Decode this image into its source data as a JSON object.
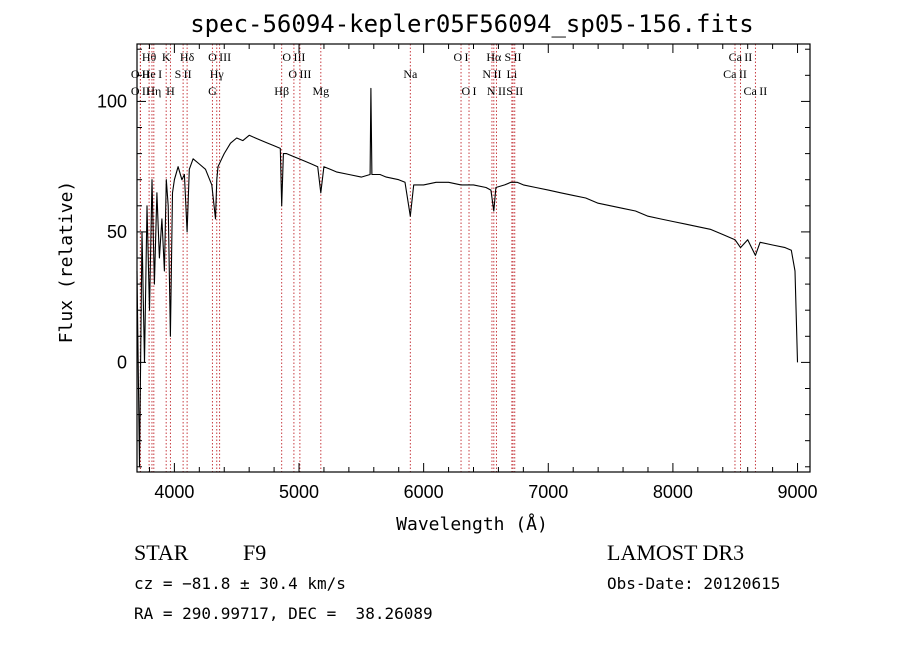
{
  "chart_data": {
    "type": "line",
    "title": "spec-56094-kepler05F56094_sp05-156.fits",
    "xlabel": "Wavelength (Å)",
    "ylabel": "Flux (relative)",
    "xlim": [
      3700,
      9100
    ],
    "ylim": [
      -42,
      122
    ],
    "xticks": [
      4000,
      5000,
      6000,
      7000,
      8000,
      9000
    ],
    "yticks": [
      0,
      50,
      100
    ],
    "series": [
      {
        "name": "spectrum",
        "x": [
          3700,
          3720,
          3740,
          3760,
          3780,
          3800,
          3820,
          3840,
          3860,
          3880,
          3900,
          3920,
          3935,
          3950,
          3968,
          3985,
          4000,
          4030,
          4060,
          4080,
          4102,
          4120,
          4150,
          4200,
          4250,
          4300,
          4330,
          4340,
          4350,
          4380,
          4400,
          4450,
          4500,
          4550,
          4600,
          4650,
          4700,
          4750,
          4800,
          4850,
          4861,
          4875,
          4900,
          4950,
          5000,
          5050,
          5100,
          5150,
          5175,
          5200,
          5250,
          5300,
          5400,
          5500,
          5570,
          5577,
          5585,
          5650,
          5700,
          5800,
          5850,
          5893,
          5920,
          6000,
          6100,
          6200,
          6300,
          6400,
          6500,
          6540,
          6563,
          6580,
          6650,
          6700,
          6750,
          6800,
          6900,
          7000,
          7100,
          7200,
          7300,
          7400,
          7500,
          7600,
          7700,
          7800,
          7900,
          8000,
          8100,
          8200,
          8300,
          8400,
          8498,
          8542,
          8600,
          8662,
          8700,
          8800,
          8900,
          8950,
          8980,
          9000
        ],
        "values": [
          35,
          -40,
          50,
          0,
          60,
          20,
          70,
          30,
          65,
          40,
          55,
          35,
          70,
          60,
          10,
          65,
          70,
          75,
          70,
          72,
          50,
          74,
          78,
          76,
          74,
          68,
          55,
          70,
          75,
          78,
          80,
          84,
          86,
          85,
          87,
          86,
          85,
          84,
          83,
          82,
          60,
          80,
          80,
          79,
          78,
          77,
          76,
          75,
          65,
          75,
          74,
          73,
          72,
          71,
          72,
          105,
          72,
          72,
          71,
          70,
          69,
          56,
          68,
          68,
          69,
          69,
          68,
          68,
          67,
          66,
          58,
          67,
          68,
          69,
          69,
          68,
          67,
          66,
          65,
          64,
          63,
          61,
          60,
          59,
          58,
          56,
          55,
          54,
          53,
          52,
          51,
          49,
          47,
          44,
          47,
          41,
          46,
          45,
          44,
          43,
          35,
          0
        ]
      }
    ],
    "line_markers": [
      {
        "label": "O II",
        "x": 3727,
        "row": 3
      },
      {
        "label": "Hθ",
        "x": 3797,
        "row": 1
      },
      {
        "label": "O II",
        "x": 3727,
        "row": 2
      },
      {
        "label": "He I",
        "x": 3820,
        "row": 2
      },
      {
        "label": "Hη",
        "x": 3835,
        "row": 3
      },
      {
        "label": "K",
        "x": 3934,
        "row": 1
      },
      {
        "label": "S II",
        "x": 4070,
        "row": 2
      },
      {
        "label": "H",
        "x": 3968,
        "row": 3
      },
      {
        "label": "Hδ",
        "x": 4102,
        "row": 1
      },
      {
        "label": "O III",
        "x": 4363,
        "row": 1
      },
      {
        "label": "Hγ",
        "x": 4340,
        "row": 2
      },
      {
        "label": "G",
        "x": 4305,
        "row": 3
      },
      {
        "label": "Hβ",
        "x": 4861,
        "row": 3
      },
      {
        "label": "O III",
        "x": 4959,
        "row": 1
      },
      {
        "label": "O III",
        "x": 5007,
        "row": 2
      },
      {
        "label": "Mg",
        "x": 5175,
        "row": 3
      },
      {
        "label": "Na",
        "x": 5893,
        "row": 2
      },
      {
        "label": "O I",
        "x": 6300,
        "row": 1
      },
      {
        "label": "O I",
        "x": 6364,
        "row": 3
      },
      {
        "label": "Hα",
        "x": 6563,
        "row": 1
      },
      {
        "label": "N II",
        "x": 6548,
        "row": 2
      },
      {
        "label": "N II",
        "x": 6584,
        "row": 3
      },
      {
        "label": "S II",
        "x": 6717,
        "row": 1
      },
      {
        "label": "Li",
        "x": 6708,
        "row": 2
      },
      {
        "label": "S II",
        "x": 6731,
        "row": 3
      },
      {
        "label": "Ca II",
        "x": 8542,
        "row": 1
      },
      {
        "label": "Ca II",
        "x": 8498,
        "row": 2
      },
      {
        "label": "Ca II",
        "x": 8662,
        "row": 3
      }
    ]
  },
  "info": {
    "object_type": "STAR",
    "subclass": "F9",
    "survey": "LAMOST DR3",
    "cz": "cz = −81.8 ± 30.4 km/s",
    "obs_date": "Obs-Date: 20120615",
    "coords": "RA = 290.99717, DEC =  38.26089"
  },
  "colors": {
    "spectrum": "#000000",
    "marker": "#c0272d",
    "axis": "#000000"
  }
}
